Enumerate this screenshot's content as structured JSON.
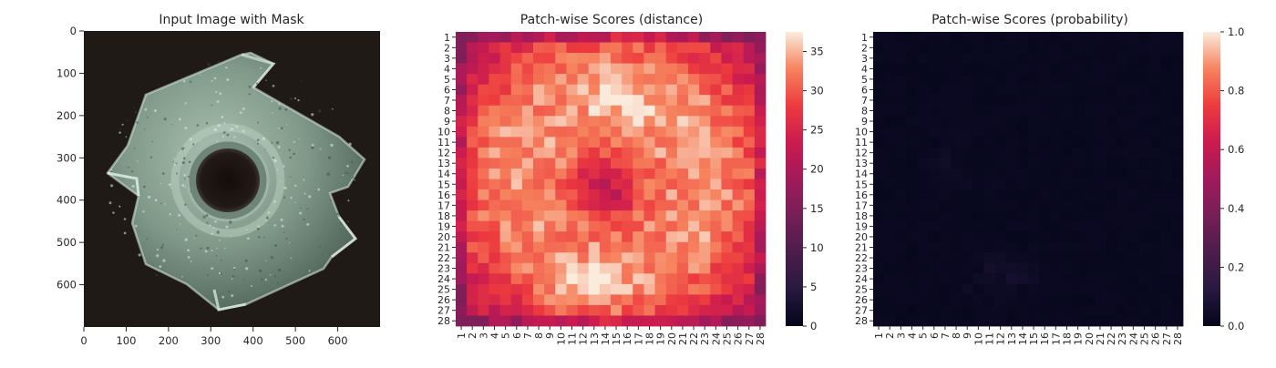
{
  "panels": {
    "image": {
      "title": "Input Image with Mask",
      "x_ticks": [
        "0",
        "100",
        "200",
        "300",
        "400",
        "500",
        "600"
      ],
      "y_ticks": [
        "0",
        "100",
        "200",
        "300",
        "400",
        "500",
        "600"
      ],
      "colors": {
        "background": "#201a17",
        "metal": "#8fa89a",
        "highlight": "#dbeee2",
        "hole": "#181210"
      }
    },
    "distance": {
      "title": "Patch-wise Scores (distance)",
      "colorbar_ticks": [
        "0",
        "5",
        "10",
        "15",
        "20",
        "25",
        "30",
        "35"
      ]
    },
    "probability": {
      "title": "Patch-wise Scores (probability)",
      "colorbar_ticks": [
        "0.0",
        "0.2",
        "0.4",
        "0.6",
        "0.8",
        "1.0"
      ]
    }
  },
  "chart_data": [
    {
      "type": "image",
      "title": "Input Image with Mask",
      "xlim": [
        0,
        700
      ],
      "ylim": [
        700,
        0
      ],
      "x_ticks": [
        0,
        100,
        200,
        300,
        400,
        500,
        600
      ],
      "y_ticks": [
        0,
        100,
        200,
        300,
        400,
        500,
        600
      ]
    },
    {
      "type": "heatmap",
      "title": "Patch-wise Scores (distance)",
      "x_labels": [
        "1",
        "2",
        "3",
        "4",
        "5",
        "6",
        "7",
        "8",
        "9",
        "10",
        "11",
        "12",
        "13",
        "14",
        "15",
        "16",
        "17",
        "18",
        "19",
        "20",
        "21",
        "22",
        "23",
        "24",
        "25",
        "26",
        "27",
        "28"
      ],
      "y_labels": [
        "1",
        "2",
        "3",
        "4",
        "5",
        "6",
        "7",
        "8",
        "9",
        "10",
        "11",
        "12",
        "13",
        "14",
        "15",
        "16",
        "17",
        "18",
        "19",
        "20",
        "21",
        "22",
        "23",
        "24",
        "25",
        "26",
        "27",
        "28"
      ],
      "colormap": "rocket",
      "vmin": 0,
      "vmax": 37.5,
      "colorbar_ticks": [
        0,
        5,
        10,
        15,
        20,
        25,
        30,
        35
      ],
      "values": "28x28 grid of distances (range approx 17–37): low values (~17–22) along the outer border and in a diagonal band around rows 12–18 / columns 11–16; high values (~33–37) in a ring (rows 5–9 and 20–27, columns 6–11 and 20–26), peaking ~37 near rows 23–26, columns 11–14"
    },
    {
      "type": "heatmap",
      "title": "Patch-wise Scores (probability)",
      "x_labels": [
        "1",
        "2",
        "3",
        "4",
        "5",
        "6",
        "7",
        "8",
        "9",
        "10",
        "11",
        "12",
        "13",
        "14",
        "15",
        "16",
        "17",
        "18",
        "19",
        "20",
        "21",
        "22",
        "23",
        "24",
        "25",
        "26",
        "27",
        "28"
      ],
      "y_labels": [
        "1",
        "2",
        "3",
        "4",
        "5",
        "6",
        "7",
        "8",
        "9",
        "10",
        "11",
        "12",
        "13",
        "14",
        "15",
        "16",
        "17",
        "18",
        "19",
        "20",
        "21",
        "22",
        "23",
        "24",
        "25",
        "26",
        "27",
        "28"
      ],
      "colormap": "rocket",
      "vmin": 0.0,
      "vmax": 1.0,
      "colorbar_ticks": [
        0.0,
        0.2,
        0.4,
        0.6,
        0.8,
        1.0
      ],
      "values": "28x28 grid of probabilities, almost all ≈0.0; faint maxima ≈0.04–0.08 around rows 21–26, columns 9–15"
    }
  ]
}
